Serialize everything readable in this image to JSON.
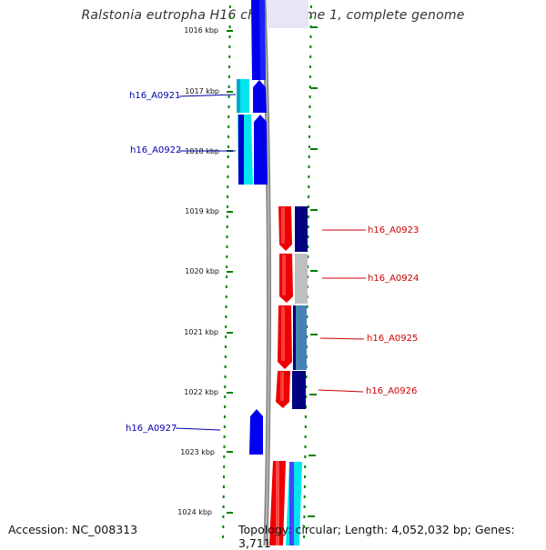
{
  "title": "Ralstonia eutropha H16 chromosome 1, complete genome",
  "accession_text": "Accession: NC_008313",
  "topology_text": "Topology: circular; Length: 4,052,032 bp; Genes: 3,711",
  "ruler": {
    "labels": [
      "1016 kbp",
      "1017 kbp",
      "1018 kbp",
      "1019 kbp",
      "1020 kbp",
      "1021 kbp",
      "1022 kbp",
      "1023 kbp",
      "1024 kbp"
    ]
  },
  "gene_labels": {
    "left": [
      "h16_A0921",
      "h16_A0922",
      "h16_A0927"
    ],
    "right": [
      "h16_A0923",
      "h16_A0924",
      "h16_A0925",
      "h16_A0926"
    ]
  },
  "colors": {
    "blue": "#0000ee",
    "cyan": "#00e5ee",
    "red": "#ee0000",
    "navy": "#000080",
    "silver": "#c0c0c0",
    "steelblue": "#4682b4",
    "ruler_green": "#008000",
    "backbone_gray": "#888888",
    "label_blue": "#0000aa",
    "label_red": "#cc0000"
  }
}
